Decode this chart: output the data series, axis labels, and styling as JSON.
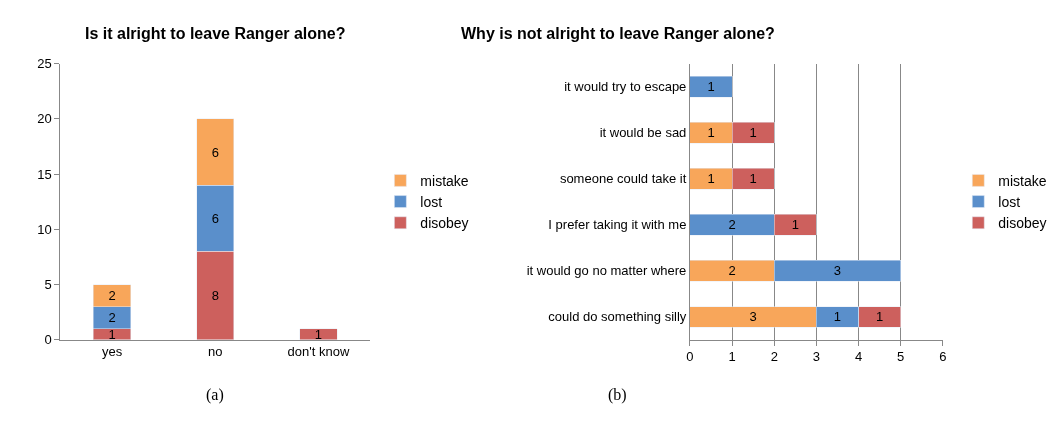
{
  "chart_data": [
    {
      "type": "bar",
      "title": "Is it alright to leave Ranger alone?",
      "stacked": true,
      "categories": [
        "yes",
        "no",
        "don't know"
      ],
      "series": [
        {
          "name": "disobey",
          "color": "#cd605d",
          "values": [
            1,
            8,
            1
          ]
        },
        {
          "name": "lost",
          "color": "#5a8fcb",
          "values": [
            2,
            6,
            null
          ]
        },
        {
          "name": "mistake",
          "color": "#f8a65a",
          "values": [
            2,
            6,
            null
          ]
        }
      ],
      "ylim": [
        0,
        25
      ],
      "yticks": [
        0,
        5,
        10,
        15,
        20,
        25
      ],
      "data_labels": true,
      "legend": "right",
      "annotations": [
        "(a)"
      ]
    },
    {
      "type": "bar",
      "title": "Why is not alright to leave Ranger alone?",
      "stacked": true,
      "orientation": "horizontal",
      "categories": [
        "it would try to escape",
        "it would be sad",
        "someone could take it",
        "I prefer taking it with me",
        "it would go no matter where",
        "could do something silly"
      ],
      "series": [
        {
          "name": "mistake",
          "color": "#f8a65a",
          "values": [
            null,
            1,
            1,
            null,
            2,
            3
          ]
        },
        {
          "name": "lost",
          "color": "#5a8fcb",
          "values": [
            1,
            null,
            null,
            2,
            3,
            1
          ]
        },
        {
          "name": "disobey",
          "color": "#cd605d",
          "values": [
            null,
            1,
            1,
            1,
            null,
            1
          ]
        }
      ],
      "xlim": [
        0,
        6
      ],
      "xticks": [
        0,
        1,
        2,
        3,
        4,
        5,
        6
      ],
      "grid": "x",
      "data_labels": true,
      "legend": "right",
      "annotations": [
        "(b)"
      ]
    }
  ]
}
